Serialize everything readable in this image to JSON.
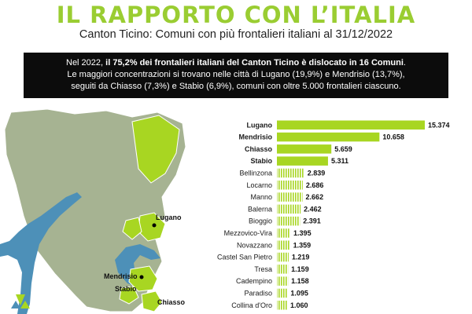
{
  "header": {
    "title": "IL RAPPORTO CON L’ITALIA",
    "subtitle": "Canton Ticino: Comuni con più frontalieri italiani al 31/12/2022"
  },
  "intro": {
    "line1_prefix": "Nel 2022, ",
    "line1_bold": "il 75,2% dei frontalieri italiani del Canton Ticino è dislocato in 16 Comuni",
    "line1_suffix": ".",
    "line2": "Le maggiori concentrazioni si trovano nelle città di Lugano (19,9%) e Mendrisio (13,7%),",
    "line3": "seguiti da Chiasso (7,3%) e Stabio (6,9%), comuni con oltre 5.000 frontalieri ciascuno."
  },
  "map": {
    "labels": [
      "Lugano",
      "Mendrisio",
      "Stabio",
      "Chiasso"
    ]
  },
  "colors": {
    "accent": "#a8d622",
    "title": "#9acd32",
    "territory": "#a6b392",
    "lake": "#4d90b8",
    "banner": "#0c0c0c"
  },
  "chart_data": {
    "type": "bar",
    "orientation": "horizontal",
    "categories": [
      "Lugano",
      "Mendrisio",
      "Chiasso",
      "Stabio",
      "Bellinzona",
      "Locarno",
      "Manno",
      "Balerna",
      "Bioggio",
      "Mezzovico-Vira",
      "Novazzano",
      "Castel San Pietro",
      "Tresa",
      "Cadempino",
      "Paradiso",
      "Collina d'Oro"
    ],
    "values": [
      15374,
      10658,
      5659,
      5311,
      2839,
      2686,
      2662,
      2462,
      2391,
      1395,
      1359,
      1219,
      1159,
      1158,
      1095,
      1060
    ],
    "value_labels": [
      "15.374",
      "10.658",
      "5.659",
      "5.311",
      "2.839",
      "2.686",
      "2.662",
      "2.462",
      "2.391",
      "1.395",
      "1.359",
      "1.219",
      "1.159",
      "1.158",
      "1.095",
      "1.060"
    ],
    "highlighted_top": 4,
    "xlim": [
      0,
      15374
    ]
  }
}
